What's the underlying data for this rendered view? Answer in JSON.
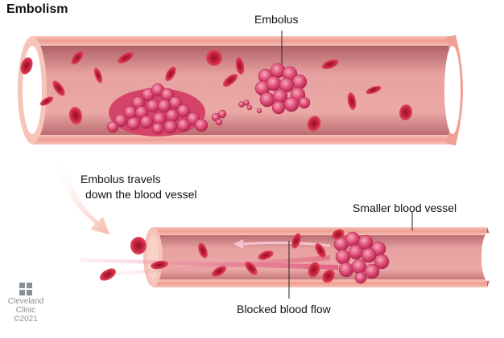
{
  "title": "Embolism",
  "labels": {
    "embolus": "Embolus",
    "travel_line1": "Embolus travels",
    "travel_line2": "down the blood vessel",
    "smaller_vessel": "Smaller blood vessel",
    "blocked_flow": "Blocked blood flow"
  },
  "logo": {
    "line1": "Cleveland",
    "line2": "Clinic",
    "copyright": "©2021",
    "icon": "cleveland-clinic-logo-icon"
  },
  "colors": {
    "vessel_wall": "#f2a49a",
    "vessel_inner": "#c86b6e",
    "red_cell": "#c2203b",
    "clot": "#d8446a"
  }
}
